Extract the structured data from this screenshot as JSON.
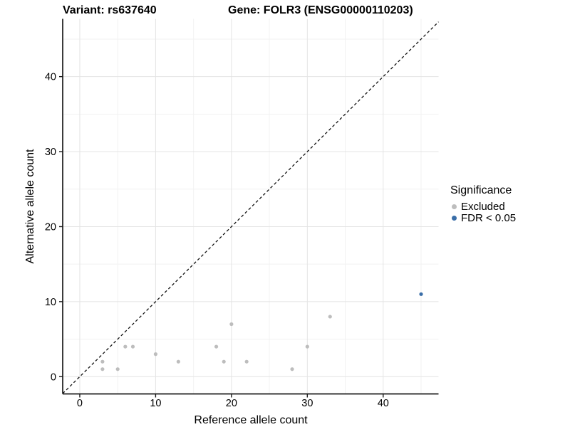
{
  "chart_data": {
    "type": "scatter",
    "title_variant": "Variant: rs637640",
    "title_gene": "Gene: FOLR3 (ENSG00000110203)",
    "xlabel": "Reference allele count",
    "ylabel": "Alternative allele count",
    "x_ticks": [
      0,
      10,
      20,
      30,
      40
    ],
    "y_ticks": [
      0,
      10,
      20,
      30,
      40
    ],
    "xlim": [
      -2.25,
      47.3
    ],
    "ylim": [
      -2.3,
      47.7
    ],
    "grid": "major and minor gridlines, white background",
    "reference_line": {
      "type": "identity y=x",
      "style": "dashed",
      "color": "#111111"
    },
    "legend": {
      "title": "Significance",
      "position": "right"
    },
    "series": [
      {
        "name": "Excluded",
        "color": "#BDBDBD",
        "points": [
          [
            3,
            1
          ],
          [
            3,
            2
          ],
          [
            5,
            1
          ],
          [
            6,
            4
          ],
          [
            7,
            4
          ],
          [
            10,
            3
          ],
          [
            13,
            2
          ],
          [
            18,
            4
          ],
          [
            19,
            2
          ],
          [
            20,
            7
          ],
          [
            22,
            2
          ],
          [
            28,
            1
          ],
          [
            30,
            4
          ],
          [
            33,
            8
          ]
        ]
      },
      {
        "name": "FDR < 0.05",
        "color": "#3A6EA8",
        "points": [
          [
            45,
            11
          ]
        ]
      }
    ],
    "colors": {
      "grid_major": "#E4E4E4",
      "grid_minor": "#F2F2F2",
      "axis_line": "#1a1a1a",
      "text": "#000000"
    }
  }
}
